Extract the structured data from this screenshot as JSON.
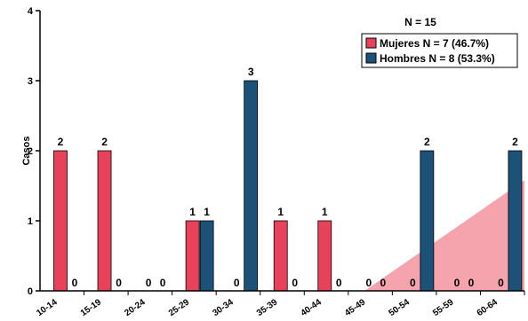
{
  "chart_data": {
    "type": "bar",
    "categories": [
      "10-14",
      "15-19",
      "20-24",
      "25-29",
      "30-34",
      "35-39",
      "40-44",
      "45-49",
      "50-54",
      "55-59",
      "60-64"
    ],
    "series": [
      {
        "name": "Mujeres N = 7 (46.7%)",
        "values": [
          2,
          2,
          0,
          1,
          0,
          1,
          1,
          0,
          0,
          0,
          0
        ],
        "color": "#e8425a"
      },
      {
        "name": "Hombres N = 8 (53.3%)",
        "values": [
          0,
          0,
          0,
          1,
          3,
          0,
          0,
          0,
          2,
          0,
          2
        ],
        "color": "#1c5277"
      }
    ],
    "ylabel": "Casos",
    "xlabel": "",
    "ylim": [
      0,
      4
    ],
    "yticks": [
      0,
      1,
      2,
      3,
      4
    ],
    "annotation": "N = 15",
    "legend_position": "top-right",
    "grid": false,
    "background_wedge_color": "#f5a3ad"
  }
}
